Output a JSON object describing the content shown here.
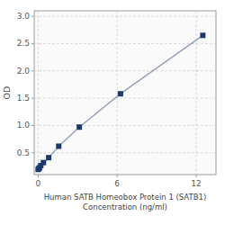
{
  "chart_data": {
    "type": "line",
    "xlabel": "Human SATB Homeobox Protein 1 (SATB1)\nConcentration (ng/ml)",
    "ylabel": "OD",
    "x": [
      0.0,
      0.05,
      0.1,
      0.2,
      0.4,
      0.8,
      1.5625,
      3.125,
      6.25,
      12.5
    ],
    "series": [
      {
        "color": "#1a3a6b",
        "marker": "square",
        "values": [
          0.195,
          0.21,
          0.225,
          0.265,
          0.32,
          0.41,
          0.62,
          0.97,
          1.58,
          2.65
        ]
      }
    ],
    "xlim": [
      -0.3,
      13.5
    ],
    "ylim": [
      0.1,
      3.1
    ],
    "xticks": [
      0,
      6,
      12
    ],
    "yticks": [
      0.5,
      {
        "value": 1.0,
        "label": "1.0"
      },
      1.5,
      {
        "value": 2.0,
        "label": "2.0"
      },
      2.5,
      {
        "value": 3.0,
        "label": "3.0"
      }
    ],
    "grid": true
  }
}
